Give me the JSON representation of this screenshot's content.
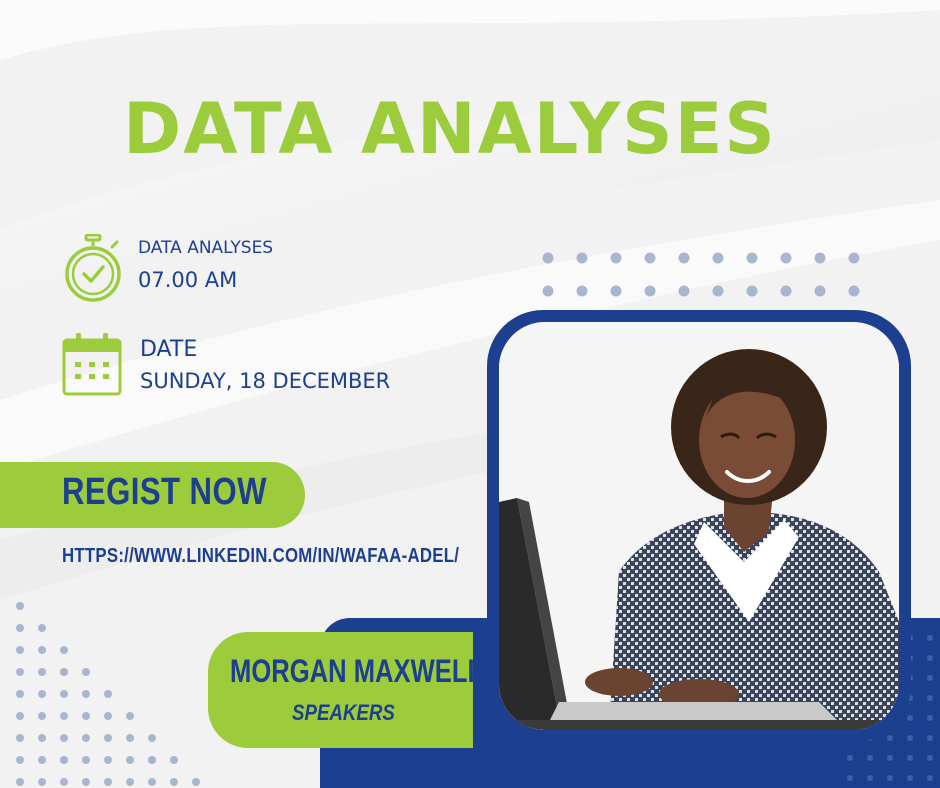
{
  "poster": {
    "title": "DATA ANALYSES",
    "time_block": {
      "label": "DATA ANALYSES",
      "value": "07.00 AM",
      "icon": "stopwatch-icon"
    },
    "date_block": {
      "label": "DATE",
      "value": "SUNDAY, 18 DECEMBER",
      "icon": "calendar-icon"
    },
    "cta": {
      "label": "REGIST NOW"
    },
    "url": "HTTPS://WWW.LINKEDIN.COM/IN/WAFAA-ADEL/",
    "speaker": {
      "name": "MORGAN MAXWELL",
      "role": "SPEAKERS"
    }
  },
  "colors": {
    "accent_green": "#9ccc3c",
    "navy": "#1d3f8f",
    "dot_blue": "#a9b6cf"
  }
}
